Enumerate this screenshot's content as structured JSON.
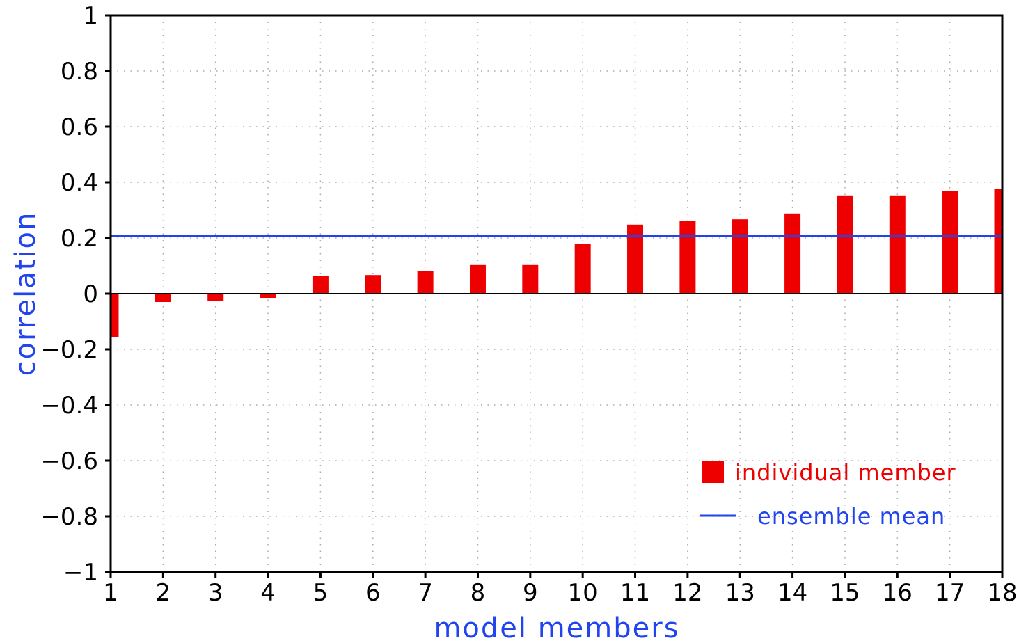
{
  "chart_data": {
    "type": "bar",
    "xlabel": "model members",
    "ylabel": "correlation",
    "xlim": [
      1,
      18
    ],
    "ylim": [
      -1,
      1
    ],
    "x_ticks": [
      1,
      2,
      3,
      4,
      5,
      6,
      7,
      8,
      9,
      10,
      11,
      12,
      13,
      14,
      15,
      16,
      17,
      18
    ],
    "y_ticks": [
      -1,
      -0.8,
      -0.6,
      -0.4,
      -0.2,
      0,
      0.2,
      0.4,
      0.6,
      0.8,
      1
    ],
    "grid": true,
    "legend_position": "bottom-right",
    "series": [
      {
        "name": "individual member",
        "kind": "bar",
        "color": "#ee0000",
        "x": [
          1,
          2,
          3,
          4,
          5,
          6,
          7,
          8,
          9,
          10,
          11,
          12,
          13,
          14,
          15,
          16,
          17,
          18
        ],
        "values": [
          -0.155,
          -0.03,
          -0.025,
          -0.015,
          0.065,
          0.067,
          0.08,
          0.103,
          0.103,
          0.178,
          0.248,
          0.262,
          0.267,
          0.288,
          0.353,
          0.353,
          0.37,
          0.375
        ]
      },
      {
        "name": "ensemble mean",
        "kind": "hline",
        "color": "#2244ee",
        "value": 0.207
      }
    ]
  }
}
